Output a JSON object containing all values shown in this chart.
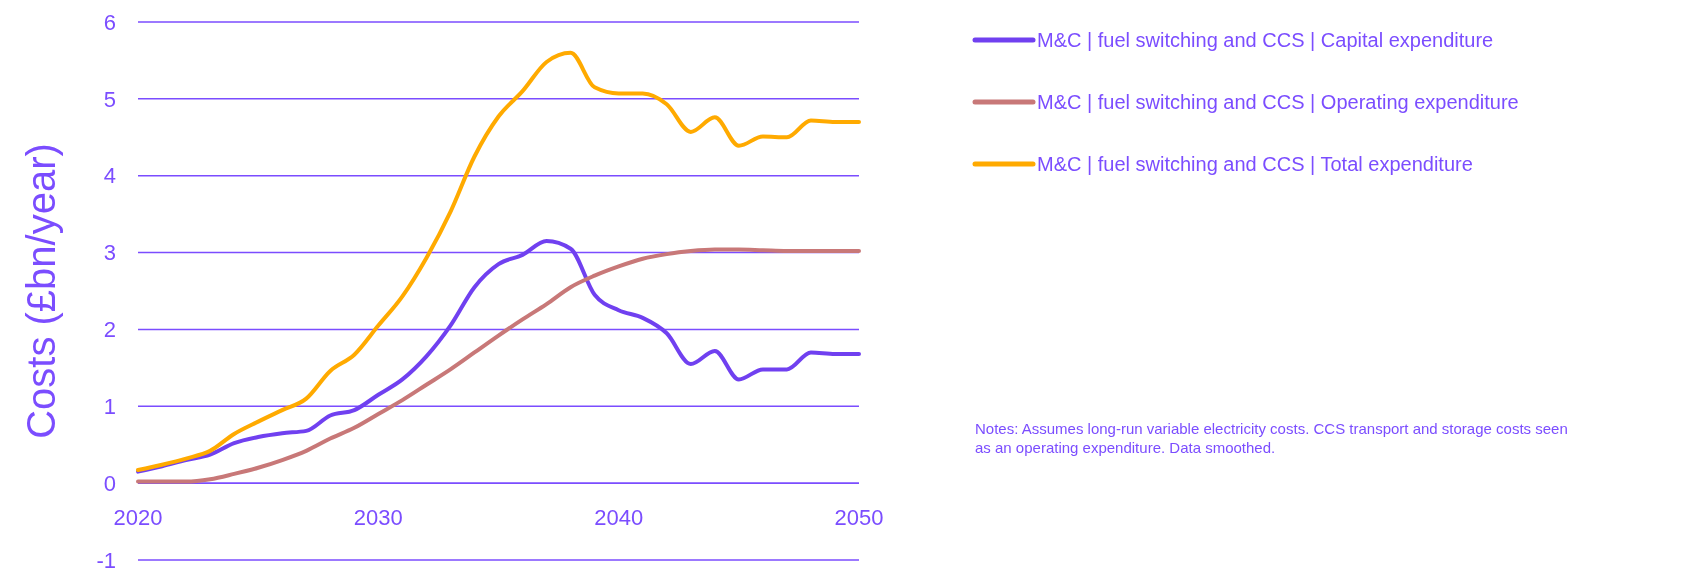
{
  "chart_data": {
    "type": "line",
    "ylabel": "Costs (£bn/year)",
    "x": [
      2020,
      2021,
      2022,
      2023,
      2024,
      2025,
      2026,
      2027,
      2028,
      2029,
      2030,
      2031,
      2032,
      2033,
      2034,
      2035,
      2036,
      2037,
      2038,
      2039,
      2040,
      2041,
      2042,
      2043,
      2044,
      2045,
      2046,
      2047,
      2048,
      2049,
      2050
    ],
    "series": [
      {
        "name": "M&C | fuel switching and CCS | Capital expenditure",
        "color": "#7040f0",
        "values": [
          0.15,
          0.22,
          0.3,
          0.37,
          0.52,
          0.6,
          0.65,
          0.68,
          0.88,
          0.95,
          1.15,
          1.35,
          1.65,
          2.05,
          2.55,
          2.85,
          2.97,
          3.15,
          3.05,
          2.45,
          2.25,
          2.15,
          1.95,
          1.55,
          1.72,
          1.35,
          1.48,
          1.48,
          1.7,
          1.68,
          1.68
        ]
      },
      {
        "name": "M&C | fuel switching and CCS | Operating expenditure",
        "color": "#c87878",
        "values": [
          0.02,
          0.02,
          0.02,
          0.05,
          0.12,
          0.2,
          0.3,
          0.42,
          0.58,
          0.72,
          0.9,
          1.08,
          1.28,
          1.48,
          1.7,
          1.92,
          2.13,
          2.33,
          2.55,
          2.7,
          2.82,
          2.92,
          2.98,
          3.02,
          3.04,
          3.04,
          3.03,
          3.02,
          3.02,
          3.02,
          3.02
        ]
      },
      {
        "name": "M&C | fuel switching and CCS | Total expenditure",
        "color": "#ffaa00",
        "values": [
          0.17,
          0.24,
          0.32,
          0.42,
          0.64,
          0.8,
          0.95,
          1.1,
          1.46,
          1.67,
          2.05,
          2.43,
          2.93,
          3.53,
          4.25,
          4.77,
          5.1,
          5.48,
          5.6,
          5.15,
          5.07,
          5.07,
          4.93,
          4.57,
          4.76,
          4.39,
          4.51,
          4.5,
          4.72,
          4.7,
          4.7
        ]
      }
    ],
    "xlim": [
      2020,
      2050
    ],
    "xticks": [
      2020,
      2030,
      2040,
      2050
    ],
    "ylim": [
      -1,
      6
    ],
    "yticks": [
      -1,
      0,
      1,
      2,
      3,
      4,
      5,
      6
    ],
    "grid": "y",
    "legend": "top right",
    "marker": "none",
    "line_style": "solid",
    "annotations": [
      "Notes: Assumes long-run variable electricity costs. CCS transport and storage costs seen as an operating expenditure. Data smoothed."
    ]
  }
}
